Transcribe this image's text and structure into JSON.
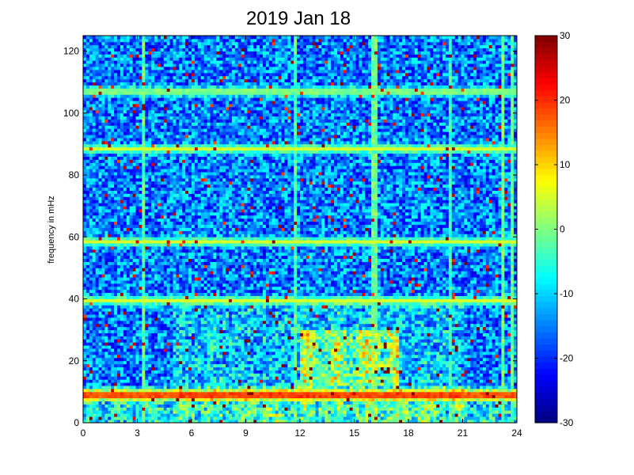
{
  "chart_data": {
    "type": "heatmap",
    "title": "2019 Jan 18",
    "xlabel": "",
    "ylabel": "frequency in mHz",
    "xlim": [
      0,
      24
    ],
    "ylim": [
      0,
      125
    ],
    "x_ticks": [
      0,
      3,
      6,
      9,
      12,
      15,
      18,
      21,
      24
    ],
    "y_ticks": [
      0,
      20,
      40,
      60,
      80,
      100,
      120
    ],
    "colorbar": {
      "colormap": "jet",
      "clim": [
        -30,
        30
      ],
      "ticks": [
        -30,
        -20,
        -10,
        0,
        10,
        20,
        30
      ]
    },
    "background_level": -15,
    "horizontal_bands": [
      {
        "freq": 9,
        "level": 25
      },
      {
        "freq": 39.5,
        "level": 5
      },
      {
        "freq": 58.5,
        "level": 5
      },
      {
        "freq": 88.5,
        "level": 5
      },
      {
        "freq": 107,
        "level": 4
      }
    ],
    "vertical_lines": [
      {
        "time": 3.3,
        "level": 2
      },
      {
        "time": 11.8,
        "level": 1
      },
      {
        "time": 16.1,
        "level": 3
      },
      {
        "time": 20.3,
        "level": 0
      },
      {
        "time": 23.2,
        "level": 3
      },
      {
        "time": 23.7,
        "level": 2
      }
    ],
    "enhanced_regions": [
      {
        "time_range": [
          5,
          21
        ],
        "freq_range": [
          0,
          40
        ],
        "level": 2
      },
      {
        "time_range": [
          12,
          17.5
        ],
        "freq_range": [
          12,
          30
        ],
        "level": 12
      },
      {
        "time_range": [
          0,
          24
        ],
        "freq_range": [
          0,
          12
        ],
        "level": 6
      }
    ]
  }
}
